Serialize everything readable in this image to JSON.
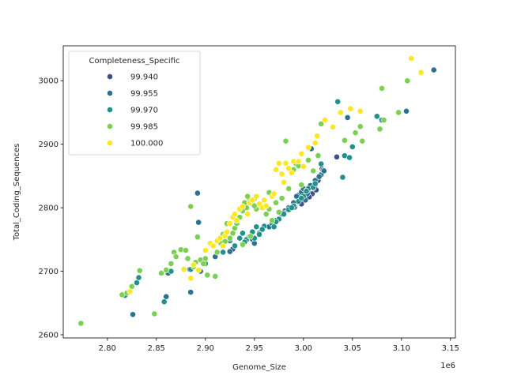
{
  "chart_data": {
    "type": "scatter",
    "xlabel": "Genome_Size",
    "ylabel": "Total_Coding_Sequences",
    "x_offset_label": "1e6",
    "x_scale": 1000000,
    "xlim": [
      2.755,
      3.155
    ],
    "ylim": [
      2595,
      3055
    ],
    "x_ticks": [
      2.8,
      2.85,
      2.9,
      2.95,
      3.0,
      3.05,
      3.1,
      3.15
    ],
    "x_tick_labels": [
      "2.80",
      "2.85",
      "2.90",
      "2.95",
      "3.00",
      "3.05",
      "3.10",
      "3.15"
    ],
    "y_ticks": [
      2600,
      2700,
      2800,
      2900,
      3000
    ],
    "y_tick_labels": [
      "2600",
      "2700",
      "2800",
      "2900",
      "3000"
    ],
    "grid": false,
    "legend": {
      "title": "Completeness_Specific",
      "placement": "top-left",
      "entries": [
        "99.940",
        "99.955",
        "99.970",
        "99.985",
        "100.000"
      ]
    },
    "series": [
      {
        "name": "99.940",
        "color": "#3b528b",
        "points": [
          [
            2.958,
            2765
          ],
          [
            2.991,
            2801
          ],
          [
            2.998,
            2806
          ],
          [
            3.001,
            2815
          ],
          [
            3.005,
            2825
          ],
          [
            3.009,
            2822
          ],
          [
            3.012,
            2836
          ],
          [
            3.015,
            2843
          ],
          [
            3.019,
            2861
          ],
          [
            3.034,
            2880
          ],
          [
            2.884,
            2703
          ],
          [
            2.928,
            2735
          ],
          [
            2.972,
            2780
          ],
          [
            2.981,
            2795
          ],
          [
            3.006,
            2817
          ],
          [
            3.013,
            2828
          ]
        ]
      },
      {
        "name": "99.955",
        "color": "#2c728e",
        "points": [
          [
            2.826,
            2632
          ],
          [
            2.86,
            2660
          ],
          [
            2.885,
            2667
          ],
          [
            2.895,
            2700
          ],
          [
            2.892,
            2823
          ],
          [
            2.893,
            2777
          ],
          [
            2.925,
            2731
          ],
          [
            2.93,
            2740
          ],
          [
            2.948,
            2750
          ],
          [
            2.95,
            2744
          ],
          [
            2.965,
            2770
          ],
          [
            2.978,
            2790
          ],
          [
            2.985,
            2800
          ],
          [
            2.99,
            2808
          ],
          [
            2.995,
            2820
          ],
          [
            2.998,
            2825
          ],
          [
            3.0,
            2830
          ],
          [
            3.002,
            2812
          ],
          [
            3.004,
            2822
          ],
          [
            3.007,
            2835
          ],
          [
            3.01,
            2831
          ],
          [
            3.012,
            2843
          ],
          [
            3.018,
            2852
          ],
          [
            3.02,
            2859
          ],
          [
            3.008,
            2893
          ],
          [
            3.045,
            2942
          ],
          [
            3.08,
            2938
          ],
          [
            3.105,
            2952
          ],
          [
            3.133,
            3017
          ],
          [
            2.862,
            2697
          ],
          [
            2.91,
            2723
          ],
          [
            2.975,
            2783
          ],
          [
            2.993,
            2818
          ],
          [
            3.003,
            2827
          ],
          [
            3.016,
            2849
          ],
          [
            3.021,
            2858
          ],
          [
            2.955,
            2760
          ],
          [
            2.98,
            2792
          ]
        ]
      },
      {
        "name": "99.970",
        "color": "#21918c",
        "points": [
          [
            2.818,
            2662
          ],
          [
            2.83,
            2682
          ],
          [
            2.832,
            2690
          ],
          [
            2.858,
            2652
          ],
          [
            2.865,
            2700
          ],
          [
            2.885,
            2703
          ],
          [
            2.9,
            2712
          ],
          [
            2.918,
            2730
          ],
          [
            2.93,
            2740
          ],
          [
            2.935,
            2752
          ],
          [
            2.938,
            2760
          ],
          [
            2.942,
            2750
          ],
          [
            2.945,
            2755
          ],
          [
            2.948,
            2762
          ],
          [
            2.952,
            2770
          ],
          [
            2.955,
            2758
          ],
          [
            2.96,
            2771
          ],
          [
            2.968,
            2775
          ],
          [
            2.975,
            2782
          ],
          [
            2.98,
            2790
          ],
          [
            2.985,
            2797
          ],
          [
            2.99,
            2803
          ],
          [
            2.995,
            2810
          ],
          [
            3.0,
            2818
          ],
          [
            3.005,
            2830
          ],
          [
            3.01,
            2832
          ],
          [
            3.018,
            2869
          ],
          [
            3.035,
            2967
          ],
          [
            3.04,
            2848
          ],
          [
            3.042,
            2882
          ],
          [
            3.047,
            2879
          ],
          [
            3.075,
            2944
          ],
          [
            2.925,
            2748
          ],
          [
            2.94,
            2746
          ],
          [
            2.95,
            2752
          ],
          [
            2.958,
            2766
          ],
          [
            2.972,
            2778
          ],
          [
            2.988,
            2800
          ],
          [
            2.998,
            2815
          ],
          [
            3.003,
            2826
          ],
          [
            3.012,
            2838
          ],
          [
            3.05,
            2896
          ],
          [
            2.97,
            2770
          ]
        ]
      },
      {
        "name": "99.985",
        "color": "#7ad151",
        "points": [
          [
            2.773,
            2618
          ],
          [
            2.815,
            2663
          ],
          [
            2.82,
            2666
          ],
          [
            2.825,
            2676
          ],
          [
            2.833,
            2701
          ],
          [
            2.848,
            2633
          ],
          [
            2.855,
            2697
          ],
          [
            2.86,
            2702
          ],
          [
            2.865,
            2712
          ],
          [
            2.868,
            2730
          ],
          [
            2.87,
            2723
          ],
          [
            2.875,
            2734
          ],
          [
            2.88,
            2733
          ],
          [
            2.882,
            2720
          ],
          [
            2.885,
            2802
          ],
          [
            2.888,
            2707
          ],
          [
            2.89,
            2714
          ],
          [
            2.892,
            2754
          ],
          [
            2.895,
            2718
          ],
          [
            2.898,
            2712
          ],
          [
            2.9,
            2720
          ],
          [
            2.902,
            2694
          ],
          [
            2.91,
            2692
          ],
          [
            2.912,
            2730
          ],
          [
            2.915,
            2745
          ],
          [
            2.918,
            2758
          ],
          [
            2.92,
            2747
          ],
          [
            2.922,
            2775
          ],
          [
            2.925,
            2752
          ],
          [
            2.928,
            2760
          ],
          [
            2.93,
            2768
          ],
          [
            2.932,
            2775
          ],
          [
            2.935,
            2785
          ],
          [
            2.938,
            2795
          ],
          [
            2.94,
            2808
          ],
          [
            2.942,
            2800
          ],
          [
            2.945,
            2812
          ],
          [
            2.948,
            2806
          ],
          [
            2.95,
            2814
          ],
          [
            2.952,
            2798
          ],
          [
            2.955,
            2805
          ],
          [
            2.958,
            2800
          ],
          [
            2.962,
            2790
          ],
          [
            2.965,
            2824
          ],
          [
            2.968,
            2780
          ],
          [
            2.972,
            2808
          ],
          [
            2.975,
            2793
          ],
          [
            2.978,
            2815
          ],
          [
            2.982,
            2905
          ],
          [
            2.985,
            2830
          ],
          [
            2.99,
            2860
          ],
          [
            2.992,
            2870
          ],
          [
            2.995,
            2866
          ],
          [
            2.998,
            2836
          ],
          [
            3.005,
            2875
          ],
          [
            3.01,
            2858
          ],
          [
            3.015,
            2882
          ],
          [
            3.018,
            2932
          ],
          [
            3.042,
            2906
          ],
          [
            3.053,
            2918
          ],
          [
            3.058,
            2928
          ],
          [
            3.06,
            2905
          ],
          [
            3.078,
            2924
          ],
          [
            3.08,
            2988
          ],
          [
            3.082,
            2938
          ],
          [
            3.097,
            2950
          ],
          [
            3.106,
            3000
          ],
          [
            2.938,
            2742
          ],
          [
            2.95,
            2803
          ],
          [
            2.943,
            2818
          ],
          [
            2.946,
            2755
          ],
          [
            2.965,
            2798
          ]
        ]
      },
      {
        "name": "100.000",
        "color": "#fde725",
        "points": [
          [
            2.823,
            2668
          ],
          [
            2.878,
            2703
          ],
          [
            2.885,
            2689
          ],
          [
            2.888,
            2710
          ],
          [
            2.893,
            2702
          ],
          [
            2.905,
            2744
          ],
          [
            2.908,
            2740
          ],
          [
            2.912,
            2748
          ],
          [
            2.915,
            2752
          ],
          [
            2.918,
            2740
          ],
          [
            2.92,
            2756
          ],
          [
            2.922,
            2762
          ],
          [
            2.925,
            2775
          ],
          [
            2.928,
            2785
          ],
          [
            2.93,
            2790
          ],
          [
            2.932,
            2780
          ],
          [
            2.935,
            2798
          ],
          [
            2.938,
            2802
          ],
          [
            2.945,
            2808
          ],
          [
            2.948,
            2812
          ],
          [
            2.952,
            2818
          ],
          [
            2.955,
            2806
          ],
          [
            2.958,
            2800
          ],
          [
            2.962,
            2803
          ],
          [
            2.968,
            2818
          ],
          [
            2.972,
            2860
          ],
          [
            2.975,
            2870
          ],
          [
            2.978,
            2853
          ],
          [
            2.982,
            2870
          ],
          [
            2.985,
            2862
          ],
          [
            2.988,
            2855
          ],
          [
            2.99,
            2873
          ],
          [
            2.995,
            2873
          ],
          [
            2.998,
            2885
          ],
          [
            3.005,
            2895
          ],
          [
            3.012,
            2902
          ],
          [
            3.014,
            2913
          ],
          [
            3.022,
            2938
          ],
          [
            3.03,
            2927
          ],
          [
            3.038,
            2950
          ],
          [
            3.048,
            2956
          ],
          [
            3.058,
            2952
          ],
          [
            3.11,
            3035
          ],
          [
            3.12,
            3013
          ],
          [
            2.9,
            2733
          ],
          [
            2.943,
            2790
          ],
          [
            2.96,
            2812
          ],
          [
            2.98,
            2840
          ],
          [
            3.0,
            2865
          ],
          [
            2.97,
            2822
          ]
        ]
      }
    ]
  }
}
